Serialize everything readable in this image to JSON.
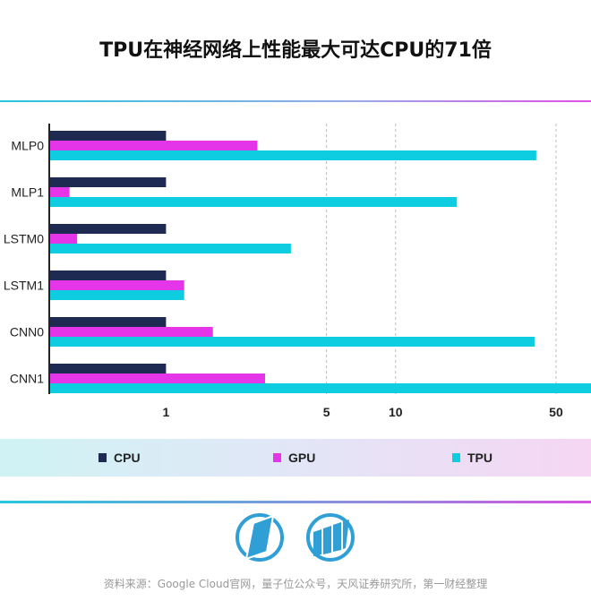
{
  "title": "TPU在神经网络上性能最大可达CPU的71倍",
  "chart_data": {
    "type": "bar",
    "orientation": "horizontal",
    "title": "TPU在神经网络上性能最大可达CPU的71倍",
    "categories": [
      "MLP0",
      "MLP1",
      "LSTM0",
      "LSTM1",
      "CNN0",
      "CNN1"
    ],
    "series": [
      {
        "name": "CPU",
        "color": "#1f2a52",
        "values": [
          1,
          1,
          1,
          1,
          1,
          1
        ]
      },
      {
        "name": "GPU",
        "color": "#e535e8",
        "values": [
          2.5,
          0.38,
          0.41,
          1.2,
          1.6,
          2.7
        ]
      },
      {
        "name": "TPU",
        "color": "#0fcde0",
        "values": [
          41,
          18.5,
          3.5,
          1.2,
          40.3,
          71
        ]
      }
    ],
    "x_scale": "log",
    "xlim": [
      0.31,
      71
    ],
    "x_ticks": [
      1,
      5,
      10,
      50
    ],
    "x_tick_labels": [
      "1",
      "5",
      "10",
      "50"
    ],
    "grid": "dashed vertical at 5, 10, 50",
    "legend_position": "bottom"
  },
  "source": "资料来源：Google Cloud官网，量子位公众号，天风证券研究所，第一财经整理",
  "logos": [
    "logo-left",
    "logo-right"
  ]
}
